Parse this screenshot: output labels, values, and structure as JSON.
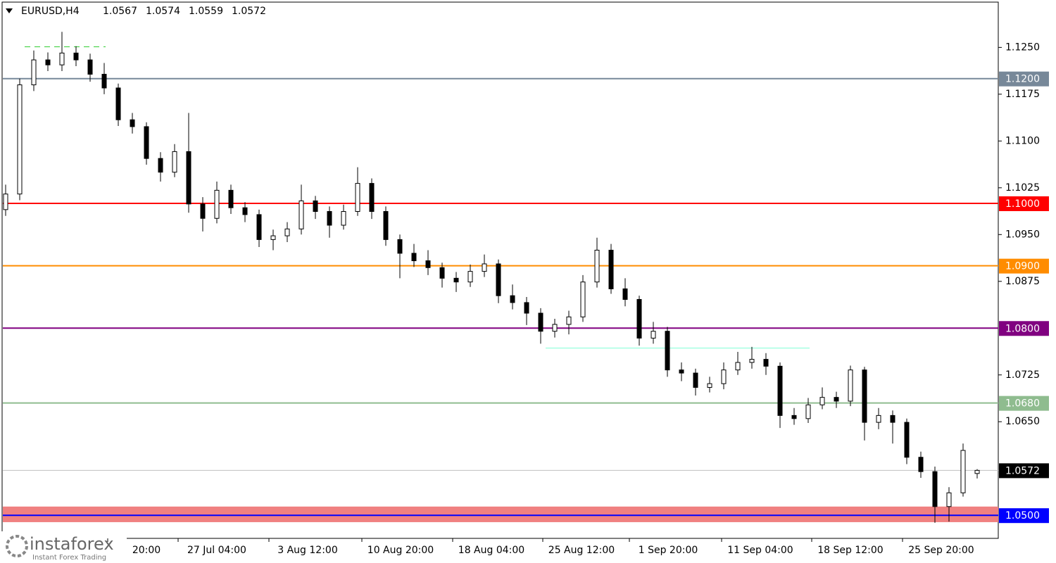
{
  "header": {
    "symbol": "EURUSD,H4",
    "ohlc": [
      1.0567,
      1.0574,
      1.0559,
      1.0572
    ]
  },
  "brand": {
    "name": "instaforex",
    "tagline": "Instant Forex Trading"
  },
  "chart_data": {
    "type": "candlestick",
    "open": [
      1.099,
      1.1015,
      1.119,
      1.123,
      1.1222,
      1.1241,
      1.123,
      1.1207,
      1.1185,
      1.1134,
      1.1123,
      1.1072,
      1.105,
      1.1083,
      1.0999,
      1.0976,
      1.1021,
      1.0993,
      1.0982,
      1.0942,
      1.0948,
      1.0959,
      1.1004,
      1.0987,
      1.0965,
      1.0987,
      1.1032,
      1.0987,
      1.0942,
      1.092,
      1.0908,
      1.0897,
      1.088,
      1.0874,
      1.0891,
      1.0903,
      1.0852,
      1.0841,
      1.0824,
      1.0795,
      1.0806,
      1.0818,
      1.0874,
      1.0925,
      1.0863,
      1.0846,
      1.0784,
      1.0795,
      1.0733,
      1.0728,
      1.0705,
      1.0711,
      1.0733,
      1.0745,
      1.075,
      1.0739,
      1.066,
      1.0655,
      1.0677,
      1.0689,
      1.0683,
      1.0733,
      1.0649,
      1.066,
      1.0649,
      1.0593,
      1.057,
      1.0514,
      1.0536,
      1.0567
    ],
    "high": [
      1.103,
      1.12,
      1.1245,
      1.1242,
      1.1275,
      1.1252,
      1.124,
      1.1225,
      1.1192,
      1.1145,
      1.113,
      1.1082,
      1.1095,
      1.1145,
      1.101,
      1.1035,
      1.103,
      1.1002,
      1.099,
      1.0958,
      1.097,
      1.103,
      1.1012,
      1.0995,
      1.0998,
      1.1058,
      1.104,
      1.0995,
      1.095,
      1.0935,
      1.0925,
      1.0905,
      1.089,
      1.0902,
      1.0918,
      1.091,
      1.087,
      1.085,
      1.0832,
      1.0815,
      1.0828,
      1.0885,
      1.0945,
      1.0935,
      1.088,
      1.0852,
      1.081,
      1.0802,
      1.0745,
      1.0735,
      1.0722,
      1.0745,
      1.0762,
      1.077,
      1.076,
      1.0745,
      1.0672,
      1.0688,
      1.0705,
      1.0698,
      1.074,
      1.0738,
      1.0672,
      1.0668,
      1.0655,
      1.0602,
      1.0578,
      1.0545,
      1.0615,
      1.0574
    ],
    "low": [
      1.098,
      1.1005,
      1.118,
      1.1212,
      1.1212,
      1.122,
      1.1195,
      1.1175,
      1.1124,
      1.1112,
      1.1062,
      1.1035,
      1.1042,
      1.0985,
      1.0955,
      1.0968,
      1.0983,
      1.097,
      1.093,
      1.0925,
      1.0938,
      1.095,
      1.0975,
      1.0945,
      1.0958,
      1.098,
      1.0975,
      1.0932,
      1.088,
      1.0898,
      1.0885,
      1.0865,
      1.0858,
      1.0866,
      1.0882,
      1.084,
      1.083,
      1.0805,
      1.0775,
      1.0785,
      1.079,
      1.081,
      1.0865,
      1.0855,
      1.0835,
      1.0772,
      1.0775,
      1.0722,
      1.0715,
      1.0692,
      1.0697,
      1.0702,
      1.0725,
      1.0735,
      1.0725,
      1.064,
      1.0645,
      1.0648,
      1.067,
      1.0672,
      1.0675,
      1.062,
      1.0638,
      1.0615,
      1.0582,
      1.056,
      1.0488,
      1.049,
      1.053,
      1.0559
    ],
    "close": [
      1.1015,
      1.119,
      1.123,
      1.1222,
      1.1241,
      1.123,
      1.1207,
      1.1185,
      1.1134,
      1.1123,
      1.1072,
      1.105,
      1.1083,
      1.0999,
      1.0976,
      1.1021,
      1.0993,
      1.0982,
      1.0942,
      1.0948,
      1.0959,
      1.1004,
      1.0987,
      1.0965,
      1.0987,
      1.1032,
      1.0987,
      1.0942,
      1.092,
      1.0908,
      1.0897,
      1.088,
      1.0874,
      1.0891,
      1.0903,
      1.0852,
      1.0841,
      1.0824,
      1.0795,
      1.0806,
      1.0818,
      1.0874,
      1.0925,
      1.0863,
      1.0846,
      1.0784,
      1.0795,
      1.0733,
      1.0728,
      1.0705,
      1.0711,
      1.0733,
      1.0745,
      1.075,
      1.0739,
      1.066,
      1.0655,
      1.0677,
      1.0689,
      1.0683,
      1.0733,
      1.0649,
      1.066,
      1.0649,
      1.0593,
      1.057,
      1.0514,
      1.0536,
      1.0604,
      1.0572
    ],
    "ylim": [
      1.0463,
      1.1326
    ],
    "yticks": [
      {
        "value": 1.125,
        "label": "1.1250"
      },
      1.1175,
      {
        "value": 1.11,
        "label": "1.1100"
      },
      1.1025,
      {
        "value": 1.095,
        "label": "1.0950"
      },
      1.0875,
      1.0725,
      {
        "value": 1.065,
        "label": "1.0650"
      }
    ],
    "xlabels": [
      "20:00",
      "27 Jul 04:00",
      "3 Aug 12:00",
      "10 Aug 20:00",
      "18 Aug 04:00",
      "25 Aug 12:00",
      "1 Sep 20:00",
      "11 Sep 04:00",
      "18 Sep 12:00",
      "25 Sep 20:00"
    ],
    "levels": [
      {
        "value": 1.12,
        "label": "1.1200",
        "color": "#778899"
      },
      {
        "value": 1.1,
        "label": "1.1000",
        "color": "#ff0000"
      },
      {
        "value": 1.09,
        "label": "1.0900",
        "color": "#ff8c00"
      },
      {
        "value": 1.08,
        "label": "1.0800",
        "color": "#800080"
      },
      {
        "value": 1.068,
        "label": "1.0680",
        "color": "#8fbc8f"
      },
      {
        "value": 1.0572,
        "label": "1.0572",
        "color": "#000000"
      },
      {
        "value": 1.05,
        "label": "1.0500",
        "color": "#0000ff"
      }
    ],
    "zone": {
      "range": [
        1.0489,
        1.0514
      ],
      "color": "#f08080"
    },
    "segments": [
      {
        "value": 1.1251,
        "color": "#32cd32"
      },
      {
        "value": 1.0768,
        "color": "#7fffd4"
      }
    ]
  }
}
